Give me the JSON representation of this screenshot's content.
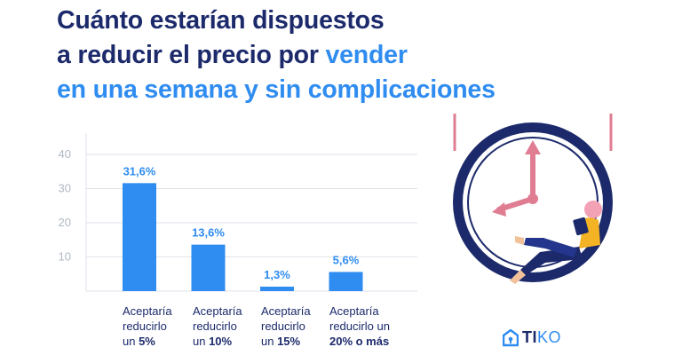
{
  "title": {
    "line1": "Cuánto estarían dispuestos",
    "line2_dark": "a reducir el precio por ",
    "line2_blue": "vender",
    "line3": "en una semana y sin complicaciones"
  },
  "chart_data": {
    "type": "bar",
    "title": "Cuánto estarían dispuestos a reducir el precio por vender en una semana y sin complicaciones",
    "categories": [
      "Aceptaría reducirlo un 5%",
      "Aceptaría reducirlo un 10%",
      "Aceptaría reducirlo un 15%",
      "Aceptaría reducirlo un 20% o más"
    ],
    "values": [
      31.6,
      13.6,
      1.3,
      5.6
    ],
    "data_labels": [
      "31,6%",
      "13,6%",
      "1,3%",
      "5,6%"
    ],
    "yticks": [
      10,
      20,
      30,
      40
    ],
    "ylim": [
      0,
      40
    ],
    "grid": true,
    "xlabel": "",
    "ylabel": "",
    "bar_color": "#2f8cf0"
  },
  "categories_display": [
    {
      "l1": "Aceptaría",
      "l2": "reducirlo",
      "l3_prefix": "un ",
      "l3_bold": "5%"
    },
    {
      "l1": "Aceptaría",
      "l2": "reducirlo",
      "l3_prefix": "un ",
      "l3_bold": "10%"
    },
    {
      "l1": "Aceptaría",
      "l2": "reducirlo",
      "l3_prefix": "un ",
      "l3_bold": "15%"
    },
    {
      "l1": "Aceptaría",
      "l2": "reducirlo un",
      "l3_prefix": "",
      "l3_bold": "20% o más"
    }
  ],
  "brand": {
    "name_a": "TI",
    "name_b": "KO"
  },
  "colors": {
    "dark": "#1c2a6b",
    "accent": "#2f8cf0",
    "pink": "#e07d93",
    "grid": "#dde2e8"
  }
}
